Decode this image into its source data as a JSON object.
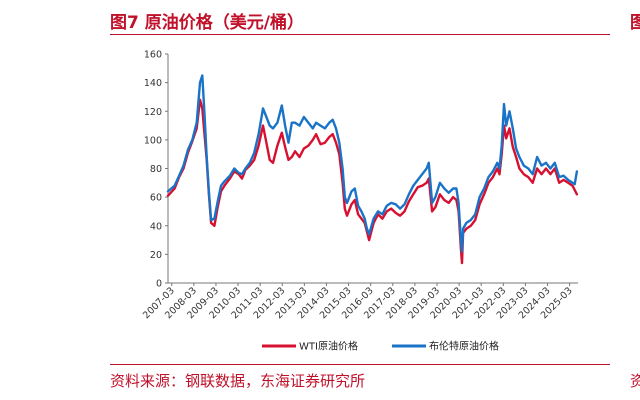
{
  "figure": {
    "title": "图7  原油价格（美元/桶）",
    "source": "资料来源：钢联数据，东海证券研究所",
    "edge_fragment_top": "图",
    "edge_fragment_bottom": "资"
  },
  "chart_data": {
    "type": "line",
    "title": "",
    "xlabel": "",
    "ylabel": "",
    "ylim": [
      0,
      160
    ],
    "yticks": [
      0,
      20,
      40,
      60,
      80,
      100,
      120,
      140,
      160
    ],
    "xticks": [
      "2007-03",
      "2008-03",
      "2009-03",
      "2010-03",
      "2011-03",
      "2012-03",
      "2013-03",
      "2014-03",
      "2015-03",
      "2016-03",
      "2017-03",
      "2018-03",
      "2019-03",
      "2020-03",
      "2021-03",
      "2022-03",
      "2023-03",
      "2024-03",
      "2025-03"
    ],
    "xlim": [
      2007.0,
      2025.55
    ],
    "grid": false,
    "legend": "bottom",
    "series": [
      {
        "name": "WTI原油价格",
        "color": "#d7102f",
        "x": [
          2007.0,
          2007.3,
          2007.5,
          2007.7,
          2007.9,
          2008.1,
          2008.3,
          2008.45,
          2008.55,
          2008.65,
          2008.75,
          2008.85,
          2008.95,
          2009.1,
          2009.25,
          2009.4,
          2009.55,
          2009.8,
          2010.0,
          2010.2,
          2010.35,
          2010.5,
          2010.7,
          2010.9,
          2011.1,
          2011.3,
          2011.45,
          2011.6,
          2011.75,
          2011.95,
          2012.15,
          2012.3,
          2012.45,
          2012.6,
          2012.75,
          2012.95,
          2013.15,
          2013.35,
          2013.55,
          2013.7,
          2013.9,
          2014.1,
          2014.3,
          2014.45,
          2014.6,
          2014.75,
          2014.9,
          2015.0,
          2015.1,
          2015.3,
          2015.45,
          2015.6,
          2015.75,
          2015.9,
          2016.0,
          2016.1,
          2016.3,
          2016.5,
          2016.7,
          2016.9,
          2017.1,
          2017.3,
          2017.5,
          2017.7,
          2017.9,
          2018.1,
          2018.3,
          2018.5,
          2018.7,
          2018.8,
          2018.95,
          2019.1,
          2019.3,
          2019.5,
          2019.7,
          2019.9,
          2020.05,
          2020.15,
          2020.25,
          2020.3,
          2020.35,
          2020.5,
          2020.7,
          2020.9,
          2021.1,
          2021.3,
          2021.5,
          2021.7,
          2021.9,
          2022.0,
          2022.1,
          2022.2,
          2022.3,
          2022.45,
          2022.6,
          2022.75,
          2022.9,
          2023.1,
          2023.3,
          2023.5,
          2023.7,
          2023.9,
          2024.1,
          2024.3,
          2024.5,
          2024.7,
          2024.9,
          2025.1,
          2025.3,
          2025.4,
          2025.5
        ],
        "values": [
          61,
          66,
          74,
          80,
          91,
          99,
          108,
          128,
          122,
          104,
          86,
          62,
          42,
          40,
          53,
          64,
          68,
          73,
          78,
          76,
          73,
          79,
          82,
          86,
          96,
          110,
          98,
          86,
          84,
          96,
          105,
          95,
          86,
          88,
          92,
          88,
          94,
          96,
          100,
          104,
          97,
          98,
          102,
          104,
          98,
          90,
          70,
          52,
          47,
          55,
          58,
          48,
          45,
          42,
          36,
          30,
          42,
          48,
          45,
          50,
          52,
          49,
          47,
          50,
          57,
          62,
          67,
          68,
          70,
          73,
          50,
          53,
          62,
          58,
          56,
          60,
          58,
          50,
          24,
          14,
          35,
          38,
          40,
          44,
          55,
          62,
          70,
          74,
          80,
          76,
          90,
          110,
          101,
          108,
          95,
          88,
          80,
          76,
          74,
          70,
          80,
          76,
          80,
          76,
          80,
          70,
          72,
          70,
          68,
          65,
          62
        ]
      },
      {
        "name": "布伦特原油价格",
        "color": "#1a73c7",
        "x": [
          2007.0,
          2007.3,
          2007.5,
          2007.7,
          2007.9,
          2008.1,
          2008.3,
          2008.45,
          2008.55,
          2008.65,
          2008.75,
          2008.85,
          2008.95,
          2009.1,
          2009.25,
          2009.4,
          2009.55,
          2009.8,
          2010.0,
          2010.2,
          2010.35,
          2010.5,
          2010.7,
          2010.9,
          2011.1,
          2011.3,
          2011.45,
          2011.6,
          2011.75,
          2011.95,
          2012.15,
          2012.3,
          2012.45,
          2012.6,
          2012.75,
          2012.95,
          2013.15,
          2013.35,
          2013.55,
          2013.7,
          2013.9,
          2014.1,
          2014.3,
          2014.45,
          2014.6,
          2014.75,
          2014.9,
          2015.0,
          2015.1,
          2015.3,
          2015.45,
          2015.6,
          2015.75,
          2015.9,
          2016.0,
          2016.1,
          2016.3,
          2016.5,
          2016.7,
          2016.9,
          2017.1,
          2017.3,
          2017.5,
          2017.7,
          2017.9,
          2018.1,
          2018.3,
          2018.5,
          2018.7,
          2018.8,
          2018.95,
          2019.1,
          2019.3,
          2019.5,
          2019.7,
          2019.9,
          2020.05,
          2020.15,
          2020.25,
          2020.3,
          2020.35,
          2020.5,
          2020.7,
          2020.9,
          2021.1,
          2021.3,
          2021.5,
          2021.7,
          2021.9,
          2022.0,
          2022.1,
          2022.2,
          2022.3,
          2022.45,
          2022.6,
          2022.75,
          2022.9,
          2023.1,
          2023.3,
          2023.5,
          2023.7,
          2023.9,
          2024.1,
          2024.3,
          2024.5,
          2024.7,
          2024.9,
          2025.1,
          2025.3,
          2025.4,
          2025.5
        ],
        "values": [
          64,
          68,
          75,
          82,
          93,
          100,
          112,
          140,
          145,
          118,
          88,
          64,
          44,
          45,
          57,
          68,
          71,
          75,
          80,
          77,
          76,
          80,
          84,
          91,
          104,
          122,
          116,
          110,
          108,
          112,
          124,
          110,
          98,
          112,
          112,
          110,
          116,
          112,
          108,
          112,
          110,
          108,
          112,
          114,
          108,
          98,
          80,
          60,
          56,
          64,
          66,
          54,
          50,
          45,
          38,
          34,
          45,
          50,
          48,
          54,
          56,
          55,
          52,
          55,
          62,
          68,
          72,
          76,
          80,
          84,
          56,
          60,
          70,
          66,
          63,
          66,
          66,
          56,
          30,
          22,
          38,
          42,
          44,
          48,
          60,
          66,
          74,
          78,
          84,
          80,
          96,
          125,
          110,
          120,
          108,
          94,
          88,
          82,
          80,
          76,
          88,
          82,
          84,
          80,
          84,
          74,
          75,
          72,
          70,
          69,
          78
        ]
      }
    ]
  }
}
